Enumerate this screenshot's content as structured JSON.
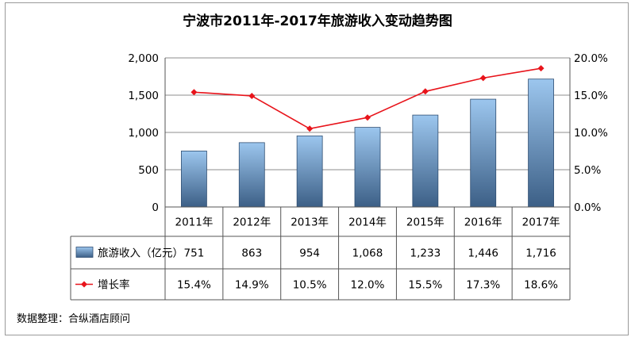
{
  "chart_data": {
    "type": "bar",
    "title": "宁波市2011年-2017年旅游收入变动趋势图",
    "categories": [
      "2011年",
      "2012年",
      "2013年",
      "2014年",
      "2015年",
      "2016年",
      "2017年"
    ],
    "series": [
      {
        "name": "旅游收入（亿元）",
        "type": "bar",
        "axis": "left",
        "values": [
          751,
          863,
          954,
          1068,
          1233,
          1446,
          1716
        ],
        "labels": [
          "751",
          "863",
          "954",
          "1,068",
          "1,233",
          "1,446",
          "1,716"
        ],
        "color": "#5b8fc9"
      },
      {
        "name": "增长率",
        "type": "line",
        "axis": "right",
        "values": [
          15.4,
          14.9,
          10.5,
          12.0,
          15.5,
          17.3,
          18.6
        ],
        "labels": [
          "15.4%",
          "14.9%",
          "10.5%",
          "12.0%",
          "15.5%",
          "17.3%",
          "18.6%"
        ],
        "color": "#e8141b"
      }
    ],
    "y_left": {
      "min": 0,
      "max": 2000,
      "ticks": [
        0,
        500,
        1000,
        1500,
        2000
      ],
      "tick_labels": [
        "0",
        "500",
        "1,000",
        "1,500",
        "2,000"
      ]
    },
    "y_right": {
      "min": 0,
      "max": 20,
      "ticks": [
        0,
        5,
        10,
        15,
        20
      ],
      "tick_labels": [
        "0.0%",
        "5.0%",
        "10.0%",
        "15.0%",
        "20.0%"
      ]
    },
    "grid": true,
    "legend": "data-table"
  },
  "source_note": "数据整理：合纵酒店顾问"
}
